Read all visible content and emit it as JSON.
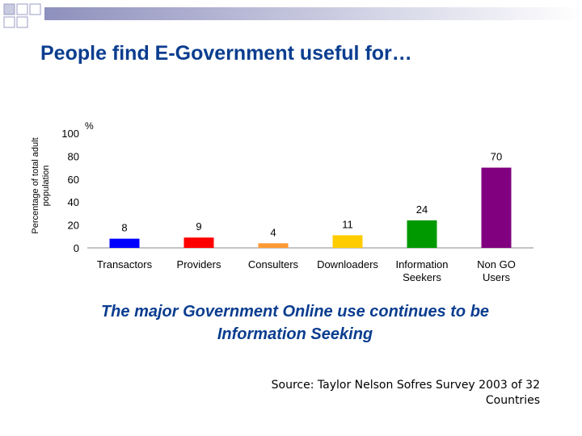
{
  "slide": {
    "title": "People find E-Government useful for…",
    "caption_line1": "The major Government Online use continues to be",
    "caption_line2": "Information Seeking",
    "source_line1": "Source: Taylor Nelson Sofres Survey 2003 of 32",
    "source_line2": "Countries"
  },
  "chart_data": {
    "type": "bar",
    "title": "",
    "ylabel_line1": "Percentage of total adult",
    "ylabel_line2": "population",
    "unit": "%",
    "ylim": [
      0,
      100
    ],
    "yticks": [
      0,
      20,
      40,
      60,
      80,
      100
    ],
    "grid": false,
    "categories": [
      [
        "Transactors"
      ],
      [
        "Providers"
      ],
      [
        "Consulters"
      ],
      [
        "Downloaders"
      ],
      [
        "Information",
        "Seekers"
      ],
      [
        "Non GO",
        "Users"
      ]
    ],
    "values": [
      8,
      9,
      4,
      11,
      24,
      70
    ],
    "colors": [
      "#0000ff",
      "#ff0000",
      "#ff9933",
      "#ffcc00",
      "#009900",
      "#800080"
    ]
  }
}
